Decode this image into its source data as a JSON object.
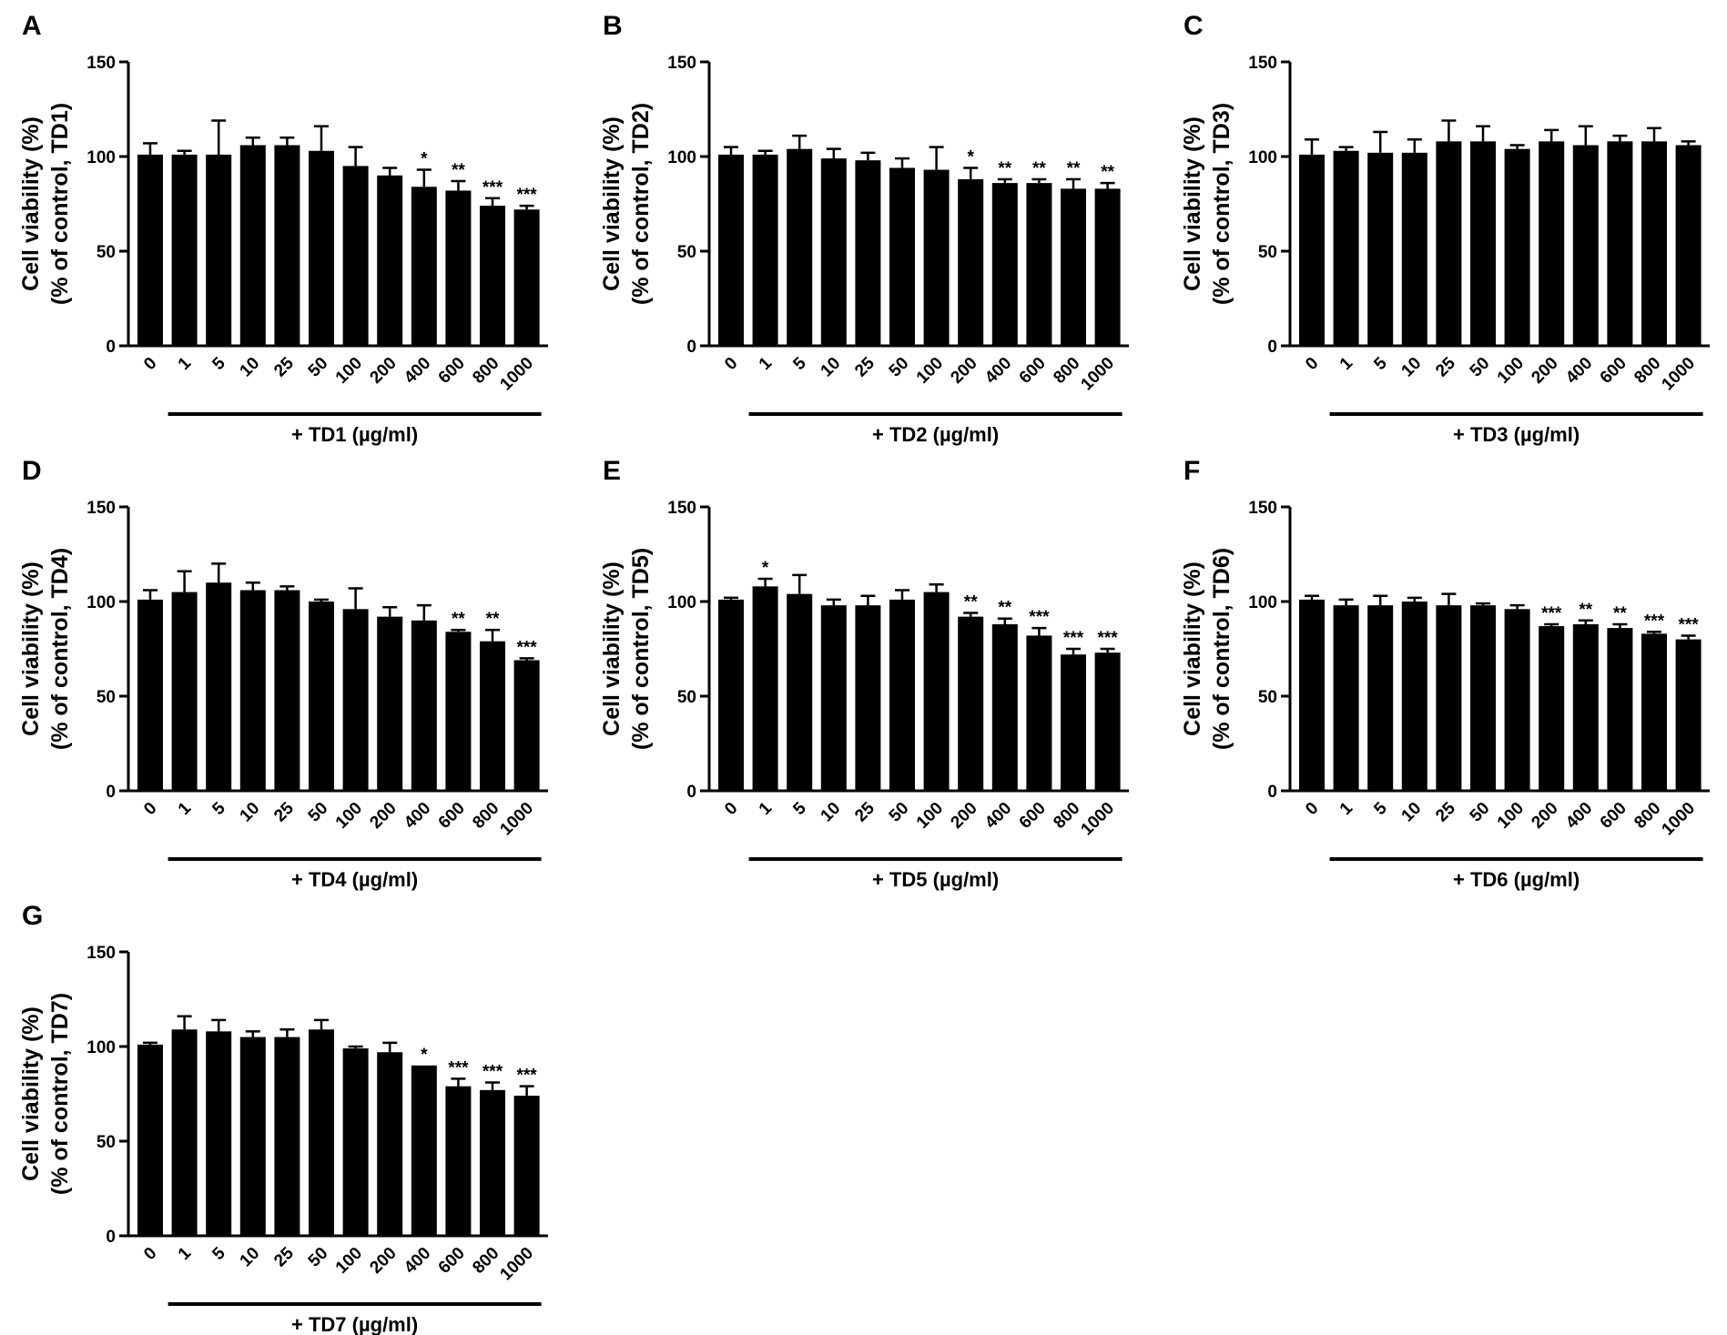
{
  "chart_data": [
    {
      "panel": "A",
      "type": "bar",
      "ylabel_line1": "Cell viability (%)",
      "ylabel_line2": "(% of control, TD1)",
      "xlabel": "+ TD1 (µg/ml)",
      "ylim": [
        0,
        150
      ],
      "yticks": [
        "0",
        "50",
        "100",
        "150"
      ],
      "categories": [
        "0",
        "1",
        "5",
        "10",
        "25",
        "50",
        "100",
        "200",
        "400",
        "600",
        "800",
        "1000"
      ],
      "values": [
        101,
        101,
        101,
        106,
        106,
        103,
        95,
        90,
        84,
        82,
        74,
        72
      ],
      "errors": [
        6,
        2,
        18,
        4,
        4,
        13,
        10,
        4,
        9,
        5,
        4,
        2
      ],
      "significance": [
        "",
        "",
        "",
        "",
        "",
        "",
        "",
        "",
        "*",
        "**",
        "***",
        "***"
      ]
    },
    {
      "panel": "B",
      "type": "bar",
      "ylabel_line1": "Cell viability (%)",
      "ylabel_line2": "(% of control, TD2)",
      "xlabel": "+ TD2 (µg/ml)",
      "ylim": [
        0,
        150
      ],
      "yticks": [
        "0",
        "50",
        "100",
        "150"
      ],
      "categories": [
        "0",
        "1",
        "5",
        "10",
        "25",
        "50",
        "100",
        "200",
        "400",
        "600",
        "800",
        "1000"
      ],
      "values": [
        101,
        101,
        104,
        99,
        98,
        94,
        93,
        88,
        86,
        86,
        83,
        83
      ],
      "errors": [
        4,
        2,
        7,
        5,
        4,
        5,
        12,
        6,
        2,
        2,
        5,
        3
      ],
      "significance": [
        "",
        "",
        "",
        "",
        "",
        "",
        "",
        "*",
        "**",
        "**",
        "**",
        "**"
      ]
    },
    {
      "panel": "C",
      "type": "bar",
      "ylabel_line1": "Cell viability (%)",
      "ylabel_line2": "(% of control, TD3)",
      "xlabel": "+ TD3 (µg/ml)",
      "ylim": [
        0,
        150
      ],
      "yticks": [
        "0",
        "50",
        "100",
        "150"
      ],
      "categories": [
        "0",
        "1",
        "5",
        "10",
        "25",
        "50",
        "100",
        "200",
        "400",
        "600",
        "800",
        "1000"
      ],
      "values": [
        101,
        103,
        102,
        102,
        108,
        108,
        104,
        108,
        106,
        108,
        108,
        106
      ],
      "errors": [
        8,
        2,
        11,
        7,
        11,
        8,
        2,
        6,
        10,
        3,
        7,
        2
      ],
      "significance": [
        "",
        "",
        "",
        "",
        "",
        "",
        "",
        "",
        "",
        "",
        "",
        ""
      ]
    },
    {
      "panel": "D",
      "type": "bar",
      "ylabel_line1": "Cell viability (%)",
      "ylabel_line2": "(% of control, TD4)",
      "xlabel": "+ TD4 (µg/ml)",
      "ylim": [
        0,
        150
      ],
      "yticks": [
        "0",
        "50",
        "100",
        "150"
      ],
      "categories": [
        "0",
        "1",
        "5",
        "10",
        "25",
        "50",
        "100",
        "200",
        "400",
        "600",
        "800",
        "1000"
      ],
      "values": [
        101,
        105,
        110,
        106,
        106,
        100,
        96,
        92,
        90,
        84,
        79,
        69
      ],
      "errors": [
        5,
        11,
        10,
        4,
        2,
        1,
        11,
        5,
        8,
        1,
        6,
        1
      ],
      "significance": [
        "",
        "",
        "",
        "",
        "",
        "",
        "",
        "",
        "",
        "**",
        "**",
        "***"
      ]
    },
    {
      "panel": "E",
      "type": "bar",
      "ylabel_line1": "Cell viability (%)",
      "ylabel_line2": "(% of control, TD5)",
      "xlabel": "+ TD5 (µg/ml)",
      "ylim": [
        0,
        150
      ],
      "yticks": [
        "0",
        "50",
        "100",
        "150"
      ],
      "categories": [
        "0",
        "1",
        "5",
        "10",
        "25",
        "50",
        "100",
        "200",
        "400",
        "600",
        "800",
        "1000"
      ],
      "values": [
        101,
        108,
        104,
        98,
        98,
        101,
        105,
        92,
        88,
        82,
        72,
        73
      ],
      "errors": [
        1,
        4,
        10,
        3,
        5,
        5,
        4,
        2,
        3,
        4,
        3,
        2
      ],
      "significance": [
        "",
        "*",
        "",
        "",
        "",
        "",
        "",
        "**",
        "**",
        "***",
        "***",
        "***"
      ]
    },
    {
      "panel": "F",
      "type": "bar",
      "ylabel_line1": "Cell viability (%)",
      "ylabel_line2": "(% of control, TD6)",
      "xlabel": "+ TD6 (µg/ml)",
      "ylim": [
        0,
        150
      ],
      "yticks": [
        "0",
        "50",
        "100",
        "150"
      ],
      "categories": [
        "0",
        "1",
        "5",
        "10",
        "25",
        "50",
        "100",
        "200",
        "400",
        "600",
        "800",
        "1000"
      ],
      "values": [
        101,
        98,
        98,
        100,
        98,
        98,
        96,
        87,
        88,
        86,
        83,
        80
      ],
      "errors": [
        2,
        3,
        5,
        2,
        6,
        1,
        2,
        1,
        2,
        2,
        1,
        2
      ],
      "significance": [
        "",
        "",
        "",
        "",
        "",
        "",
        "",
        "***",
        "**",
        "**",
        "***",
        "***"
      ]
    },
    {
      "panel": "G",
      "type": "bar",
      "ylabel_line1": "Cell viability (%)",
      "ylabel_line2": "(% of control, TD7)",
      "xlabel": "+ TD7 (µg/ml)",
      "ylim": [
        0,
        150
      ],
      "yticks": [
        "0",
        "50",
        "100",
        "150"
      ],
      "categories": [
        "0",
        "1",
        "5",
        "10",
        "25",
        "50",
        "100",
        "200",
        "400",
        "600",
        "800",
        "1000"
      ],
      "values": [
        101,
        109,
        108,
        105,
        105,
        109,
        99,
        97,
        90,
        79,
        77,
        74
      ],
      "errors": [
        1,
        7,
        6,
        3,
        4,
        5,
        1,
        5,
        0,
        4,
        4,
        5
      ],
      "significance": [
        "",
        "",
        "",
        "",
        "",
        "",
        "",
        "",
        "*",
        "***",
        "***",
        "***"
      ]
    }
  ]
}
